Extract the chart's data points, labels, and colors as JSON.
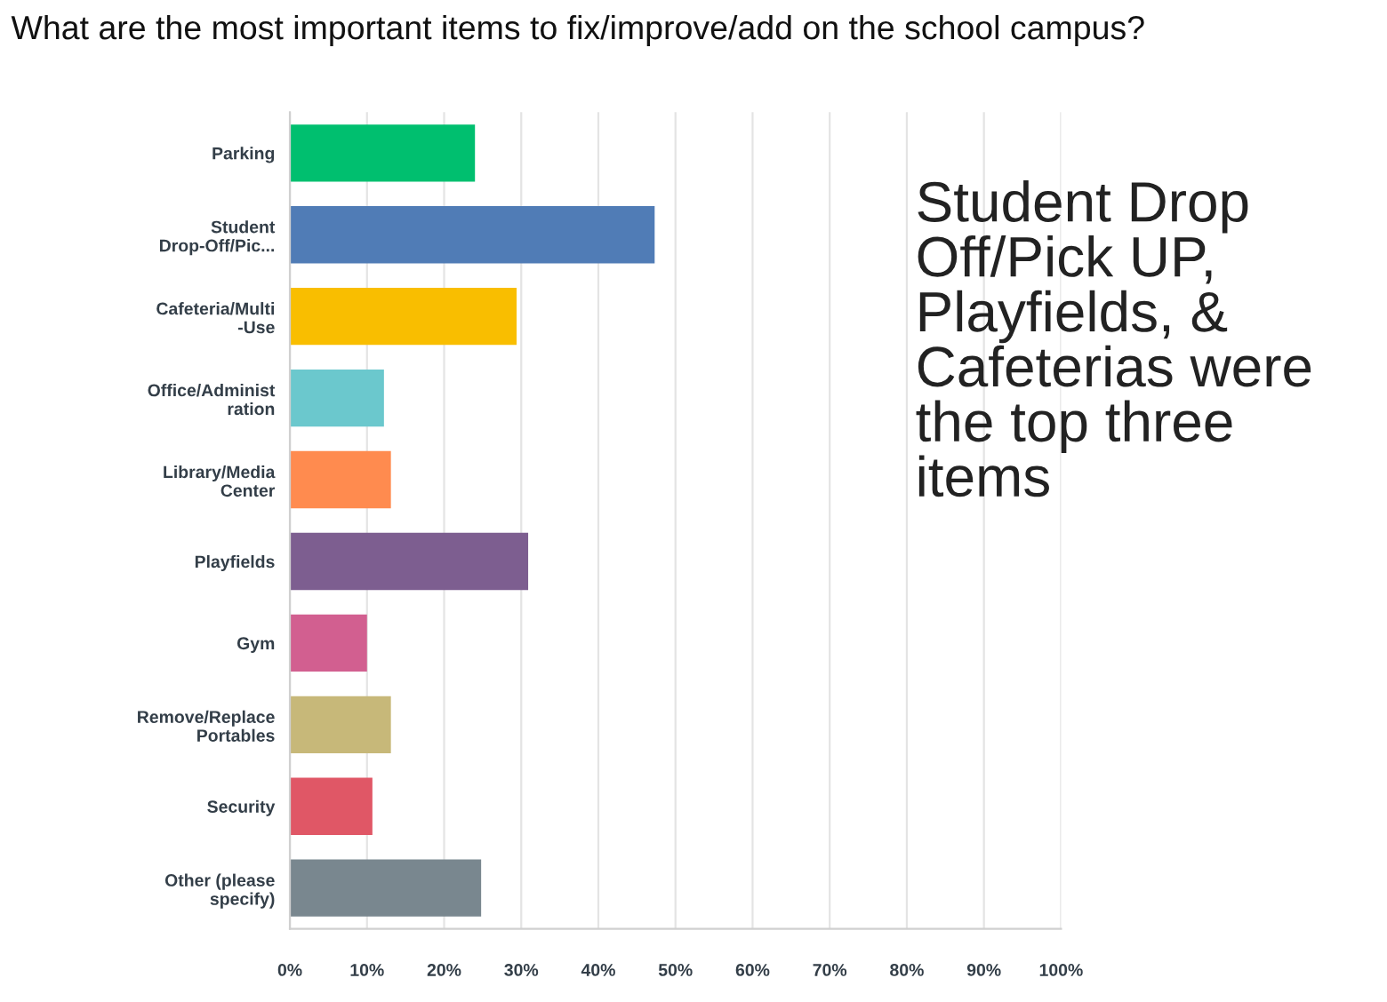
{
  "chart_data": {
    "type": "bar",
    "orientation": "horizontal",
    "title": "What are the most important items to fix/improve/add on the school campus?",
    "categories": [
      "Parking",
      "Student\nDrop-Off/Pic...",
      "Cafeteria/Multi\n-Use",
      "Office/Administ\nration",
      "Library/Media\nCenter",
      "Playfields",
      "Gym",
      "Remove/Replace\nPortables",
      "Security",
      "Other (please\nspecify)"
    ],
    "values": [
      24,
      47.3,
      29.4,
      12.2,
      13.1,
      30.9,
      10,
      13.1,
      10.7,
      24.8
    ],
    "colors": [
      "#00bf6f",
      "#507cb6",
      "#f9be00",
      "#6bc8cd",
      "#ff8b4f",
      "#7d5e90",
      "#d25f90",
      "#c7b879",
      "#e05766",
      "#79878f"
    ],
    "xlim": [
      0,
      100
    ],
    "xticks": [
      {
        "value": 0,
        "label": "0%"
      },
      {
        "value": 10,
        "label": "10%"
      },
      {
        "value": 20,
        "label": "20%"
      },
      {
        "value": 30,
        "label": "30%"
      },
      {
        "value": 40,
        "label": "40%"
      },
      {
        "value": 50,
        "label": "50%"
      },
      {
        "value": 60,
        "label": "60%"
      },
      {
        "value": 70,
        "label": "70%"
      },
      {
        "value": 80,
        "label": "80%"
      },
      {
        "value": 90,
        "label": "90%"
      },
      {
        "value": 100,
        "label": "100%"
      }
    ],
    "grid": "x",
    "annotations": [
      "Student Drop Off/Pick UP, Playfields, & Cafeterias were the top three items"
    ]
  }
}
